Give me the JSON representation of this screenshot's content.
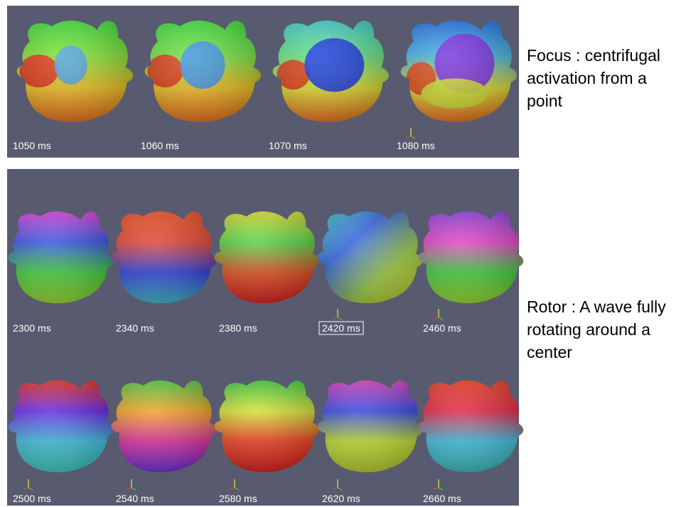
{
  "focus": {
    "frames": [
      "1050 ms",
      "1060 ms",
      "1070 ms",
      "1080 ms"
    ],
    "description": [
      "Focus : centrifugal",
      "activation from a",
      "point"
    ]
  },
  "rotor": {
    "frames": [
      "2300 ms",
      "2340 ms",
      "2380 ms",
      "2420 ms",
      "2460 ms",
      "2500 ms",
      "2540 ms",
      "2580 ms",
      "2620 ms",
      "2660 ms"
    ],
    "description": [
      "Rotor : A wave fully",
      "rotating  around a",
      "center"
    ]
  }
}
